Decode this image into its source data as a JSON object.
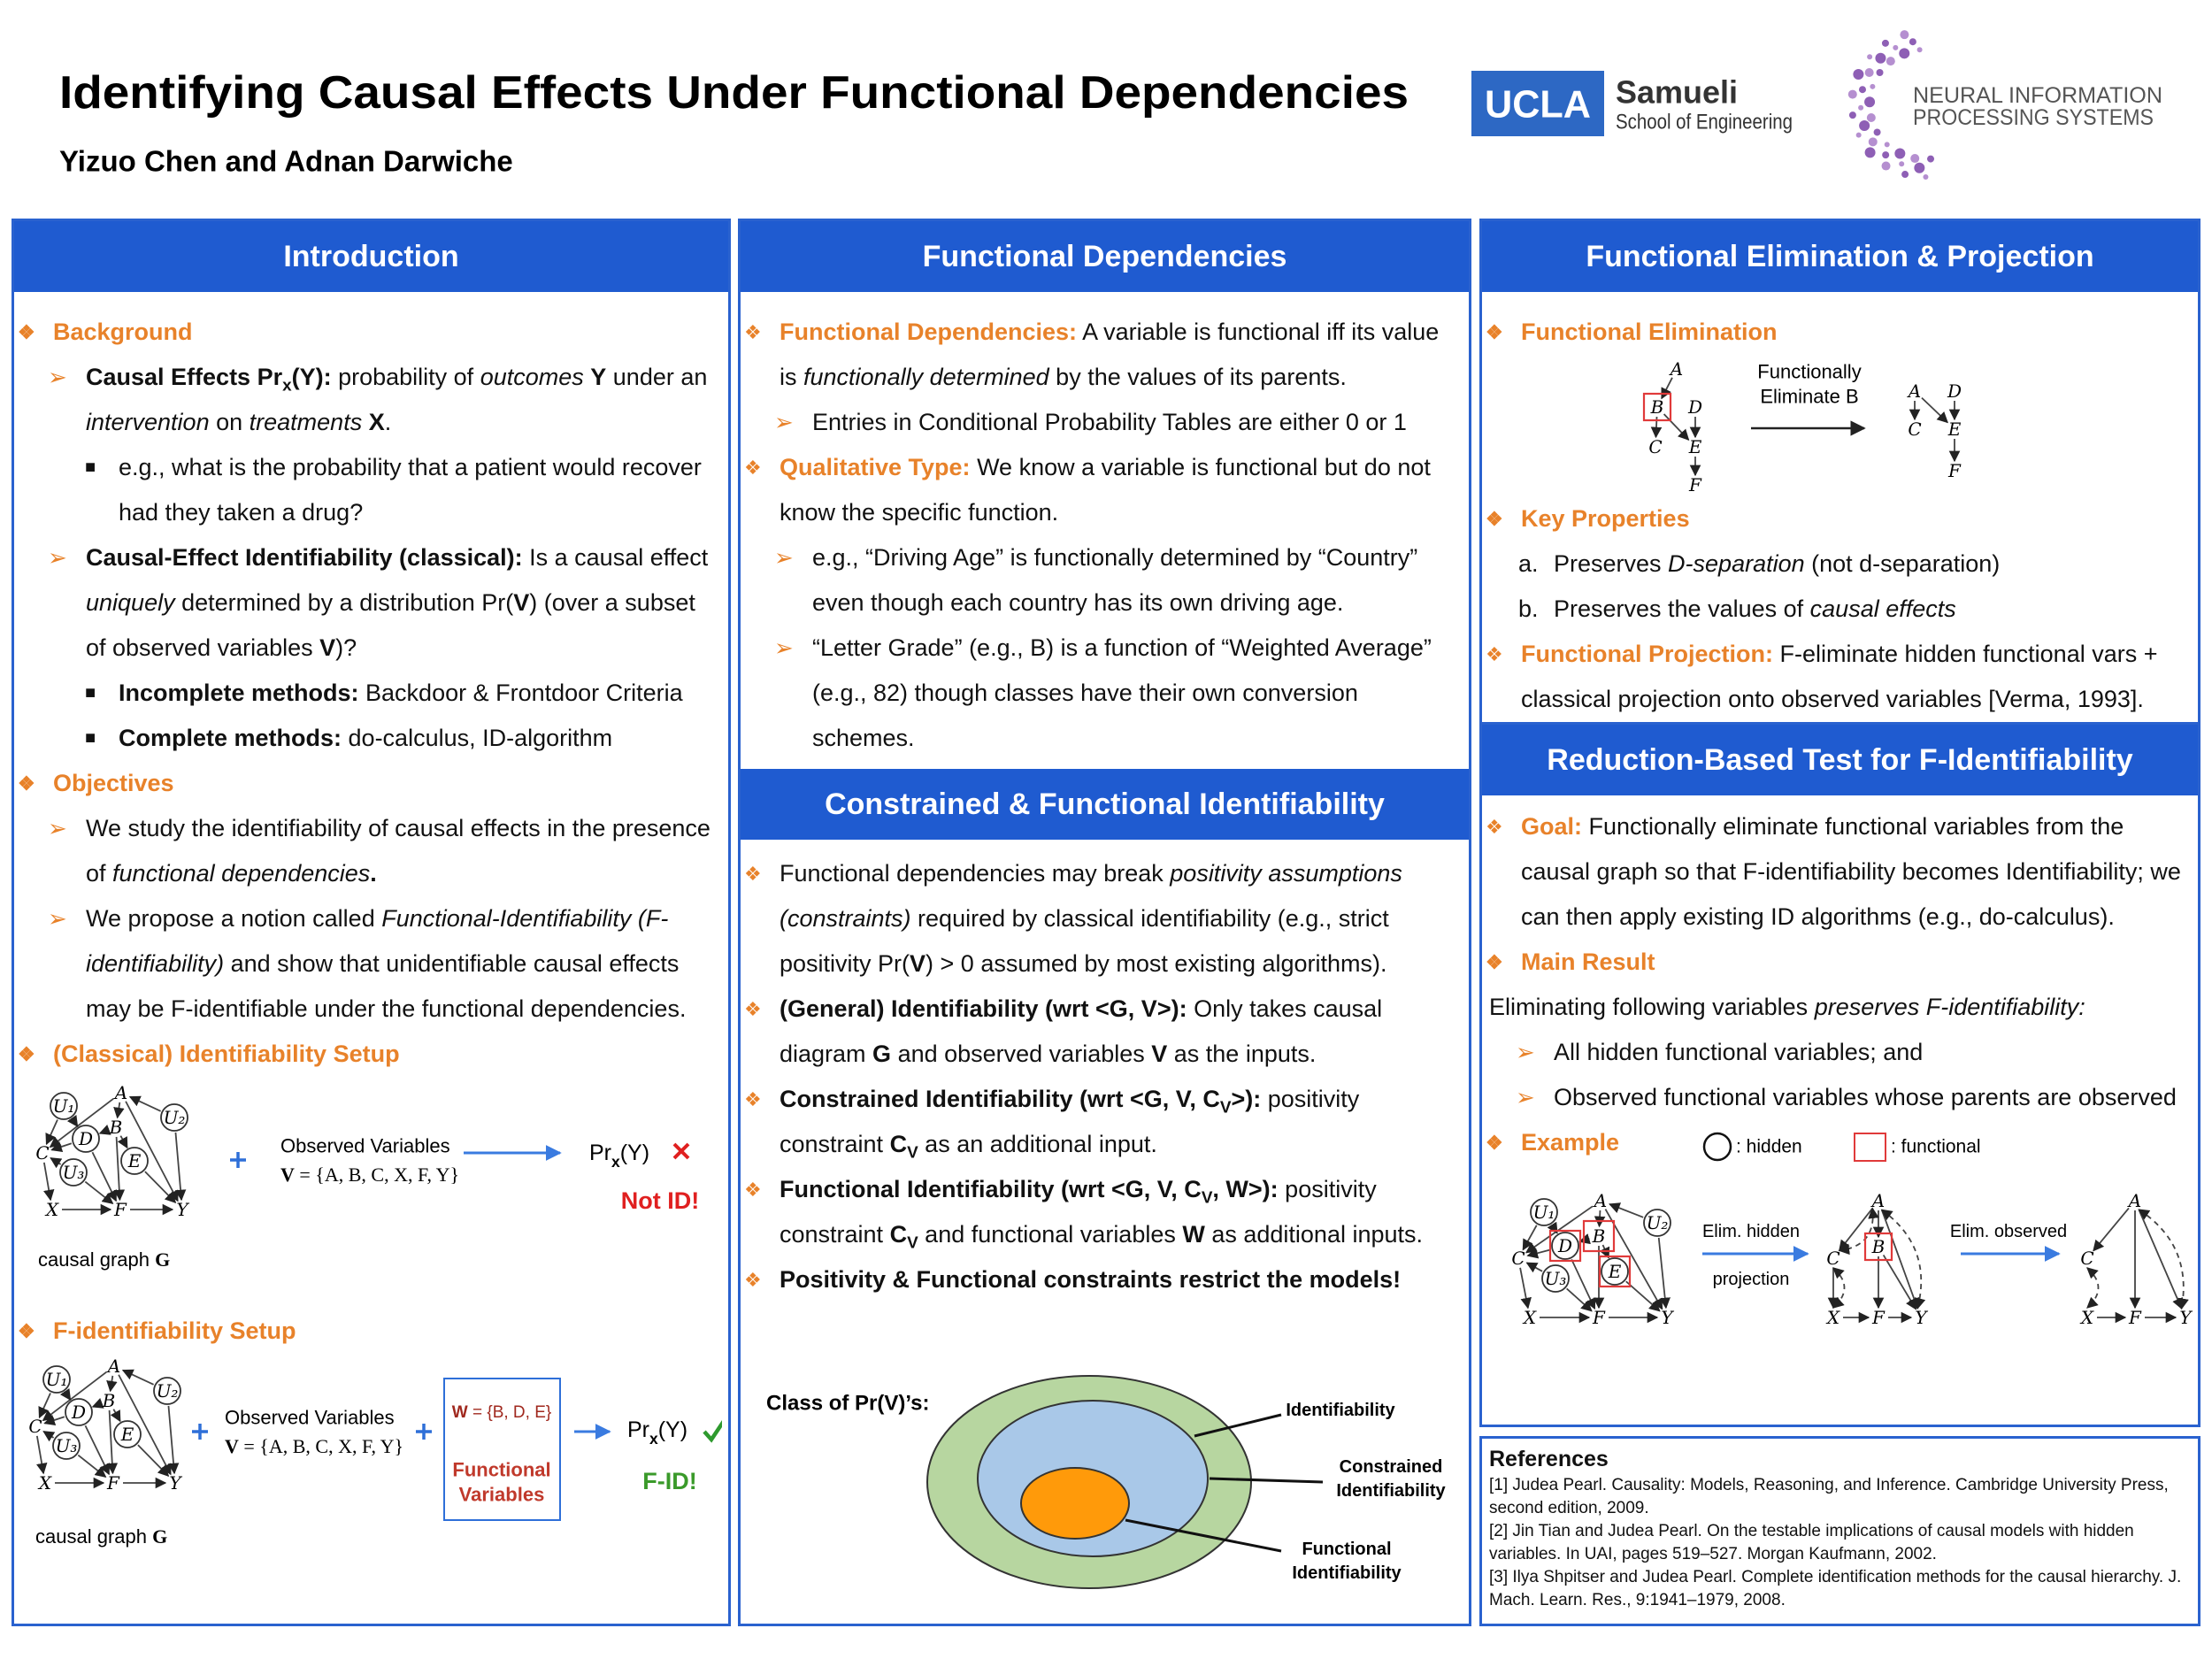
{
  "header": {
    "title": "Identifying Causal Effects Under Functional Dependencies",
    "authors": "Yizuo Chen and Adnan Darwiche",
    "ucla": "UCLA",
    "samueli": "Samueli",
    "school": "School of Engineering",
    "neurips": [
      "NEURAL INFORMATION",
      "PROCESSING SYSTEMS"
    ]
  },
  "graph_labels": {
    "U1": "U₁",
    "U2": "U₂",
    "U3": "U₃",
    "A": "A",
    "B": "B",
    "C": "C",
    "D": "D",
    "E": "E",
    "X": "X",
    "F": "F",
    "Y": "Y"
  },
  "intro": {
    "heading": "Introduction",
    "background": {
      "title": "Background",
      "items": [
        [
          "Causal Effects Pr",
          "x",
          "(Y):",
          " probability of ",
          "outcomes",
          " ",
          "Y",
          " under an ",
          "intervention",
          " on ",
          "treatments",
          " ",
          "X",
          "."
        ],
        [
          "e.g., what is the probability that a patient would recover had they taken a drug?"
        ],
        [
          "Causal-Effect Identifiability (classical):",
          " Is a causal effect ",
          "uniquely",
          " determined by a distribution Pr(",
          "V",
          ") (over a subset of observed variables ",
          "V",
          ")?"
        ],
        [
          "Incomplete methods:",
          " Backdoor & Frontdoor Criteria"
        ],
        [
          "Complete methods:",
          " do-calculus, ID-algorithm"
        ]
      ]
    },
    "objectives": {
      "title": "Objectives",
      "items": [
        [
          "We study the identifiability of causal effects in the presence of ",
          "functional dependencies",
          "."
        ],
        [
          "We propose a notion called ",
          "Functional-Identifiability (F-identifiability)",
          " and show that unidentifiable causal effects may be F-identifiable under the functional dependencies."
        ]
      ]
    },
    "classical_setup": {
      "title": "(Classical) Identifiability Setup",
      "observed_label": "Observed Variables",
      "observed_set": [
        "V",
        " = {A, B, C, X, F, Y}"
      ],
      "query": [
        "Pr",
        "x",
        "(Y)"
      ],
      "verdict": "Not ID!",
      "graph_caption": [
        "causal graph ",
        "G"
      ]
    },
    "f_setup": {
      "title": "F-identifiability Setup",
      "observed_label": "Observed Variables",
      "observed_set": [
        "V",
        " = {A, B, C, X, F, Y}"
      ],
      "functional_set": [
        "W",
        " = {B, D, E}"
      ],
      "functional_label": [
        "Functional",
        "Variables"
      ],
      "query": [
        "Pr",
        "x",
        "(Y)"
      ],
      "verdict": "F-ID!",
      "graph_caption": [
        "causal graph ",
        "G"
      ]
    }
  },
  "functional_dependencies": {
    "heading": "Functional Dependencies",
    "items": [
      [
        "Functional Dependencies:",
        " A variable is functional iff its value is ",
        "functionally determined",
        " by the values of its parents."
      ],
      [
        "Entries in Conditional Probability Tables are either 0 or 1"
      ],
      [
        "Qualitative Type:",
        " We know a variable is functional but do not know the specific function."
      ],
      [
        "e.g., “Driving Age” is functionally determined by “Country” even though each country has its own driving age."
      ],
      [
        "“Letter Grade” (e.g., B) is a function of “Weighted Average” (e.g., 82) though classes have their own conversion schemes."
      ]
    ]
  },
  "constrained": {
    "heading": "Constrained & Functional Identifiability",
    "items": [
      [
        "Functional dependencies may break ",
        "positivity assumptions (constraints)",
        " required by classical identifiability (e.g., strict positivity Pr(",
        "V",
        ") > 0 assumed by most existing algorithms)."
      ],
      [
        "(General) Identifiability (wrt <G, V>):",
        " Only takes causal diagram ",
        "G",
        " and observed variables ",
        "V",
        " as the inputs."
      ],
      [
        "Constrained Identifiability (wrt <G, V, C",
        "V",
        ">):",
        " positivity constraint ",
        "C",
        "V",
        " as an additional input."
      ],
      [
        "Functional Identifiability (wrt <G, V, C",
        "V",
        ", W>):",
        " positivity constraint ",
        "C",
        "V",
        " and functional variables ",
        "W",
        " as additional inputs."
      ],
      [
        "Positivity & Functional constraints restrict the models!"
      ]
    ],
    "figure": {
      "title": "Class of Pr(V)’s:",
      "labels": [
        [
          "Identifiability"
        ],
        [
          "Constrained",
          "Identifiability"
        ],
        [
          "Functional",
          "Identifiability"
        ]
      ]
    }
  },
  "elimination": {
    "heading": "Functional Elimination & Projection",
    "fe_title": "Functional Elimination",
    "fe_arrow": [
      "Functionally",
      "Eliminate B"
    ],
    "key_title": "Key Properties",
    "key_items": [
      [
        "a.",
        "Preserves ",
        "D-separation",
        " (not d-separation)"
      ],
      [
        "b.",
        "Preserves the values of ",
        "causal effects"
      ]
    ],
    "projection": [
      "Functional Projection:",
      " F-eliminate hidden functional vars + classical projection onto observed variables [Verma, 1993]."
    ]
  },
  "reduction": {
    "heading": "Reduction-Based Test for F-Identifiability",
    "goal": [
      "Goal:",
      " Functionally eliminate functional variables from the causal graph so that F-identifiability becomes Identifiability; we can then apply existing ID algorithms (e.g., do-calculus)."
    ],
    "main_title": "Main Result",
    "main_text": [
      "Eliminating following variables ",
      "preserves F-identifiability:"
    ],
    "main_items": [
      [
        "All hidden functional variables; and"
      ],
      [
        "Observed functional variables whose parents are observed"
      ]
    ],
    "example_title": "Example",
    "legend": [
      ": hidden",
      ": functional"
    ],
    "steps": [
      [
        "Elim. hidden",
        "projection"
      ],
      [
        "Elim. observed"
      ]
    ]
  },
  "references": {
    "title": "References",
    "items": [
      "[1] Judea Pearl. Causality: Models, Reasoning, and Inference. Cambridge University Press, second edition, 2009.",
      "[2] Jin Tian and Judea Pearl. On the testable implications of causal models with hidden variables. In UAI, pages 519–527. Morgan Kaufmann, 2002.",
      "[3] Ilya Shpitser and Judea Pearl. Complete identification methods for the causal hierarchy. J. Mach. Learn. Res., 9:1941–1979, 2008."
    ]
  }
}
